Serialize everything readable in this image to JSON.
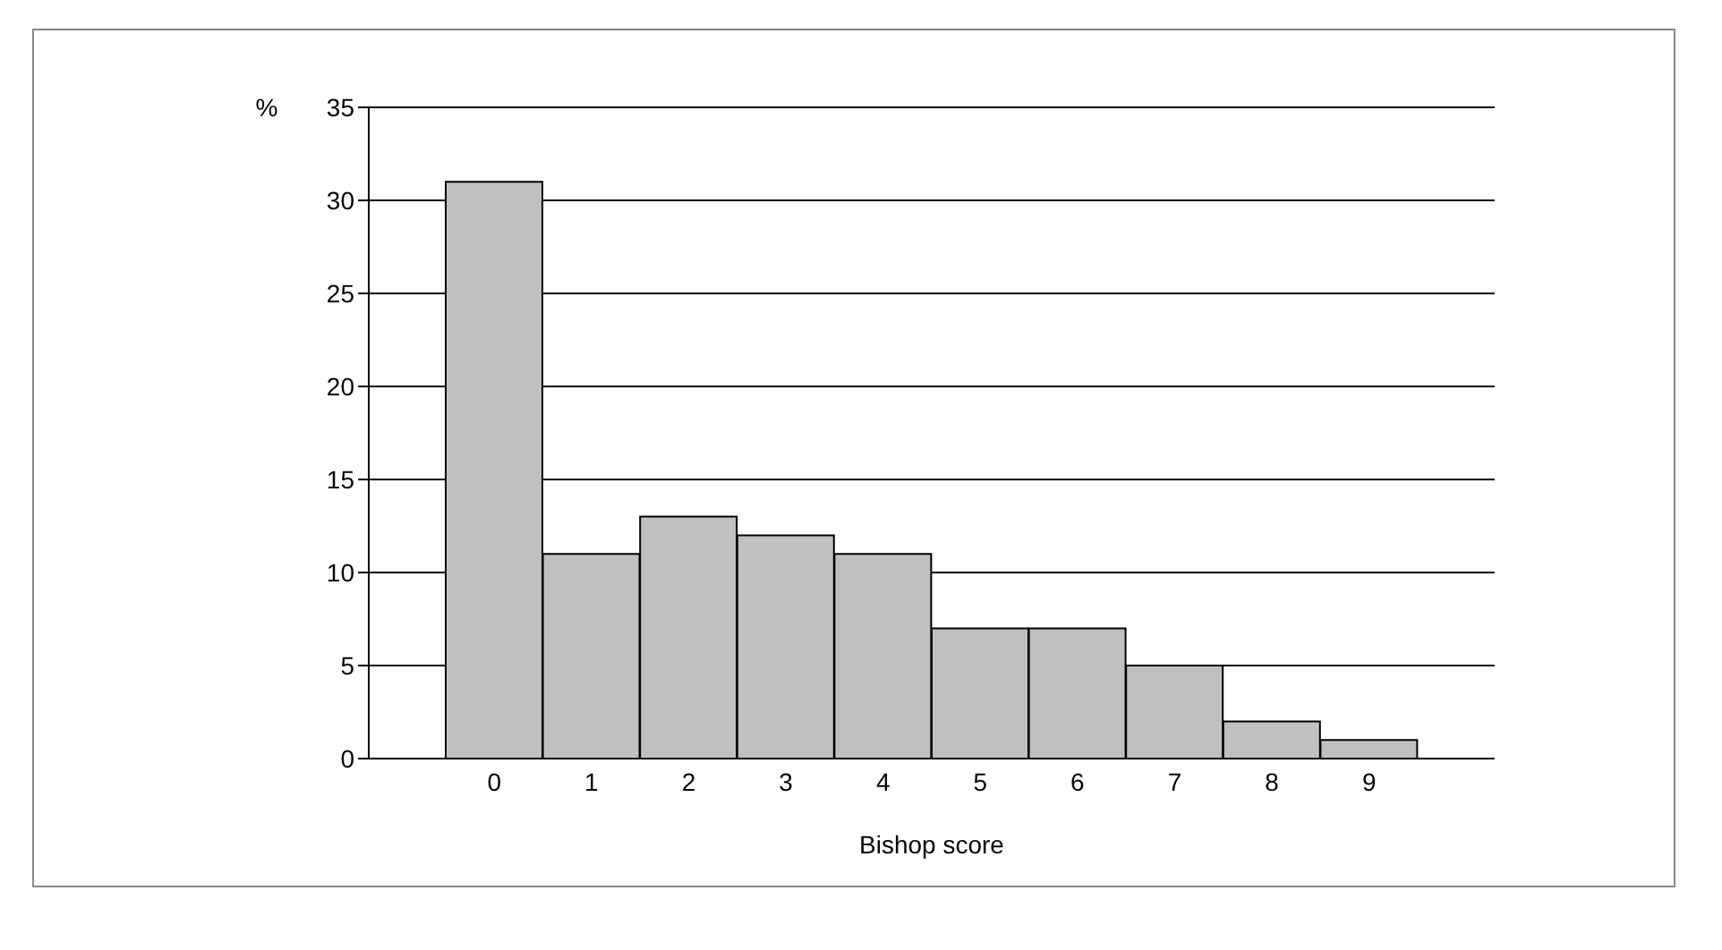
{
  "chart_data": {
    "type": "bar",
    "xlabel": "Bishop score",
    "ylabel": "%",
    "categories": [
      "0",
      "1",
      "2",
      "3",
      "4",
      "5",
      "6",
      "7",
      "8",
      "9"
    ],
    "values": [
      31,
      11,
      13,
      12,
      11,
      7,
      7,
      5,
      2,
      1
    ],
    "color": "#c0c0c2",
    "ylim": [
      0,
      35
    ],
    "yticks": [
      0,
      5,
      10,
      15,
      20,
      25,
      30,
      35
    ],
    "grid": "y",
    "legend": false
  }
}
